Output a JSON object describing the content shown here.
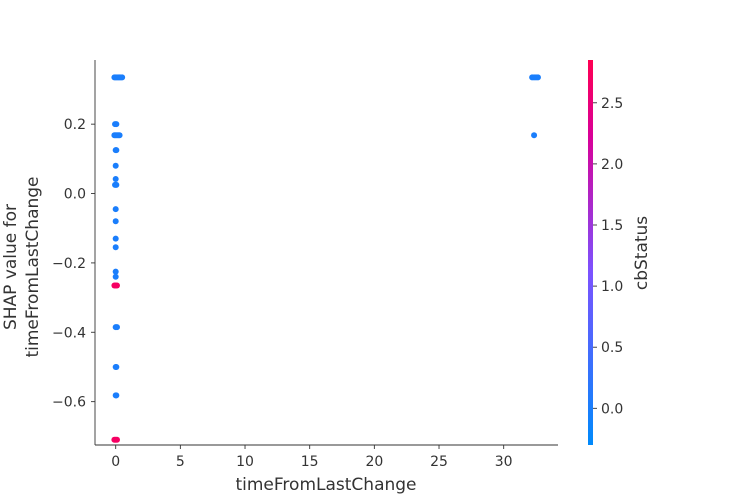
{
  "chart_data": {
    "type": "scatter",
    "title": "",
    "xlabel": "timeFromLastChange",
    "ylabel_lines": [
      "SHAP value for",
      "timeFromLastChange"
    ],
    "xlim": [
      -1.6,
      34.2
    ],
    "ylim": [
      -0.725,
      0.385
    ],
    "xticks": [
      0,
      5,
      10,
      15,
      20,
      25,
      30
    ],
    "yticks": [
      -0.6,
      -0.4,
      -0.2,
      0.0,
      0.2
    ],
    "xtick_labels": [
      "0",
      "5",
      "10",
      "15",
      "20",
      "25",
      "30"
    ],
    "ytick_labels": [
      "−0.6",
      "−0.4",
      "−0.2",
      "0.0",
      "0.2"
    ],
    "grid": false,
    "colorbar": {
      "label": "cbStatus",
      "range": [
        -0.3,
        2.85
      ],
      "ticks": [
        0.0,
        0.5,
        1.0,
        1.5,
        2.0,
        2.5
      ],
      "tick_labels": [
        "0.0",
        "0.5",
        "1.0",
        "1.5",
        "2.0",
        "2.5"
      ],
      "colors": [
        "#008afb",
        "#7c52ff",
        "#d90098",
        "#ff0052"
      ]
    },
    "points": [
      {
        "x": 0.0,
        "y": 0.335,
        "c": 0
      },
      {
        "x": 0.1,
        "y": 0.335,
        "c": 0
      },
      {
        "x": 0.2,
        "y": 0.335,
        "c": 0
      },
      {
        "x": 0.3,
        "y": 0.335,
        "c": 0
      },
      {
        "x": 0.4,
        "y": 0.335,
        "c": 0
      },
      {
        "x": 0.5,
        "y": 0.335,
        "c": 0
      },
      {
        "x": -0.1,
        "y": 0.335,
        "c": 0
      },
      {
        "x": -0.05,
        "y": 0.2,
        "c": 0
      },
      {
        "x": 0.05,
        "y": 0.2,
        "c": 0
      },
      {
        "x": -0.1,
        "y": 0.168,
        "c": 0
      },
      {
        "x": 0.0,
        "y": 0.168,
        "c": 0
      },
      {
        "x": 0.1,
        "y": 0.168,
        "c": 0
      },
      {
        "x": 0.2,
        "y": 0.168,
        "c": 0
      },
      {
        "x": 0.3,
        "y": 0.168,
        "c": 0
      },
      {
        "x": 0.0,
        "y": 0.125,
        "c": 0
      },
      {
        "x": 0.05,
        "y": 0.125,
        "c": 0
      },
      {
        "x": 0.0,
        "y": 0.08,
        "c": 0
      },
      {
        "x": 0.0,
        "y": 0.042,
        "c": 0
      },
      {
        "x": -0.05,
        "y": 0.025,
        "c": 0
      },
      {
        "x": 0.05,
        "y": 0.025,
        "c": 0
      },
      {
        "x": 0.0,
        "y": -0.045,
        "c": 0
      },
      {
        "x": 0.0,
        "y": -0.08,
        "c": 0
      },
      {
        "x": 0.0,
        "y": -0.13,
        "c": 0
      },
      {
        "x": 0.0,
        "y": -0.155,
        "c": 0
      },
      {
        "x": 0.0,
        "y": -0.225,
        "c": 0
      },
      {
        "x": 0.0,
        "y": -0.24,
        "c": 0
      },
      {
        "x": -0.1,
        "y": -0.265,
        "c": 2.7
      },
      {
        "x": 0.0,
        "y": -0.265,
        "c": 2.7
      },
      {
        "x": 0.1,
        "y": -0.265,
        "c": 2.7
      },
      {
        "x": 0.0,
        "y": -0.385,
        "c": 0
      },
      {
        "x": 0.1,
        "y": -0.385,
        "c": 0
      },
      {
        "x": 0.0,
        "y": -0.5,
        "c": 0
      },
      {
        "x": 0.05,
        "y": -0.5,
        "c": 0
      },
      {
        "x": 0.0,
        "y": -0.582,
        "c": 0
      },
      {
        "x": 0.05,
        "y": -0.582,
        "c": 0
      },
      {
        "x": -0.1,
        "y": -0.71,
        "c": 2.7
      },
      {
        "x": 0.0,
        "y": -0.71,
        "c": 2.7
      },
      {
        "x": 0.1,
        "y": -0.71,
        "c": 2.7
      },
      {
        "x": 32.2,
        "y": 0.335,
        "c": 0
      },
      {
        "x": 32.35,
        "y": 0.335,
        "c": 0
      },
      {
        "x": 32.5,
        "y": 0.335,
        "c": 0
      },
      {
        "x": 32.65,
        "y": 0.335,
        "c": 0
      },
      {
        "x": 32.35,
        "y": 0.168,
        "c": 0
      }
    ]
  }
}
